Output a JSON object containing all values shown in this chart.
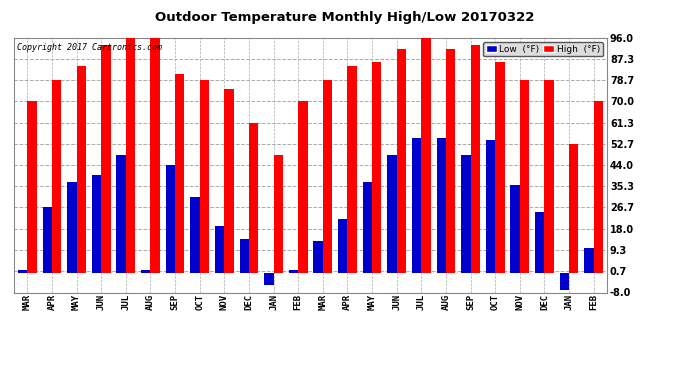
{
  "title": "Outdoor Temperature Monthly High/Low 20170322",
  "copyright": "Copyright 2017 Cartronics.com",
  "months": [
    "MAR",
    "APR",
    "MAY",
    "JUN",
    "JUL",
    "AUG",
    "SEP",
    "OCT",
    "NOV",
    "DEC",
    "JAN",
    "FEB",
    "MAR",
    "APR",
    "MAY",
    "JUN",
    "JUL",
    "AUG",
    "SEP",
    "OCT",
    "NOV",
    "DEC",
    "JAN",
    "FEB"
  ],
  "high": [
    70.0,
    78.7,
    84.2,
    93.0,
    96.0,
    96.0,
    81.0,
    78.7,
    75.2,
    61.3,
    48.0,
    70.0,
    78.7,
    84.2,
    86.0,
    91.4,
    97.5,
    91.4,
    93.0,
    86.0,
    78.7,
    78.7,
    52.7,
    70.0
  ],
  "low": [
    1.0,
    27.0,
    37.0,
    40.0,
    48.0,
    1.0,
    44.0,
    31.0,
    19.0,
    14.0,
    -5.0,
    1.0,
    13.0,
    22.0,
    37.0,
    48.0,
    55.0,
    55.0,
    48.0,
    54.0,
    36.0,
    25.0,
    -7.0,
    10.0
  ],
  "high_color": "#ff0000",
  "low_color": "#0000cc",
  "bg_color": "#ffffff",
  "plot_bg_color": "#ffffff",
  "grid_color": "#aaaaaa",
  "ylim": [
    -8.0,
    96.0
  ],
  "yticks": [
    -8.0,
    0.7,
    9.3,
    18.0,
    26.7,
    35.3,
    44.0,
    52.7,
    61.3,
    70.0,
    78.7,
    87.3,
    96.0
  ],
  "bar_width": 0.38,
  "legend_low_label": "Low  (°F)",
  "legend_high_label": "High  (°F)",
  "figwidth": 6.9,
  "figheight": 3.75,
  "dpi": 100
}
